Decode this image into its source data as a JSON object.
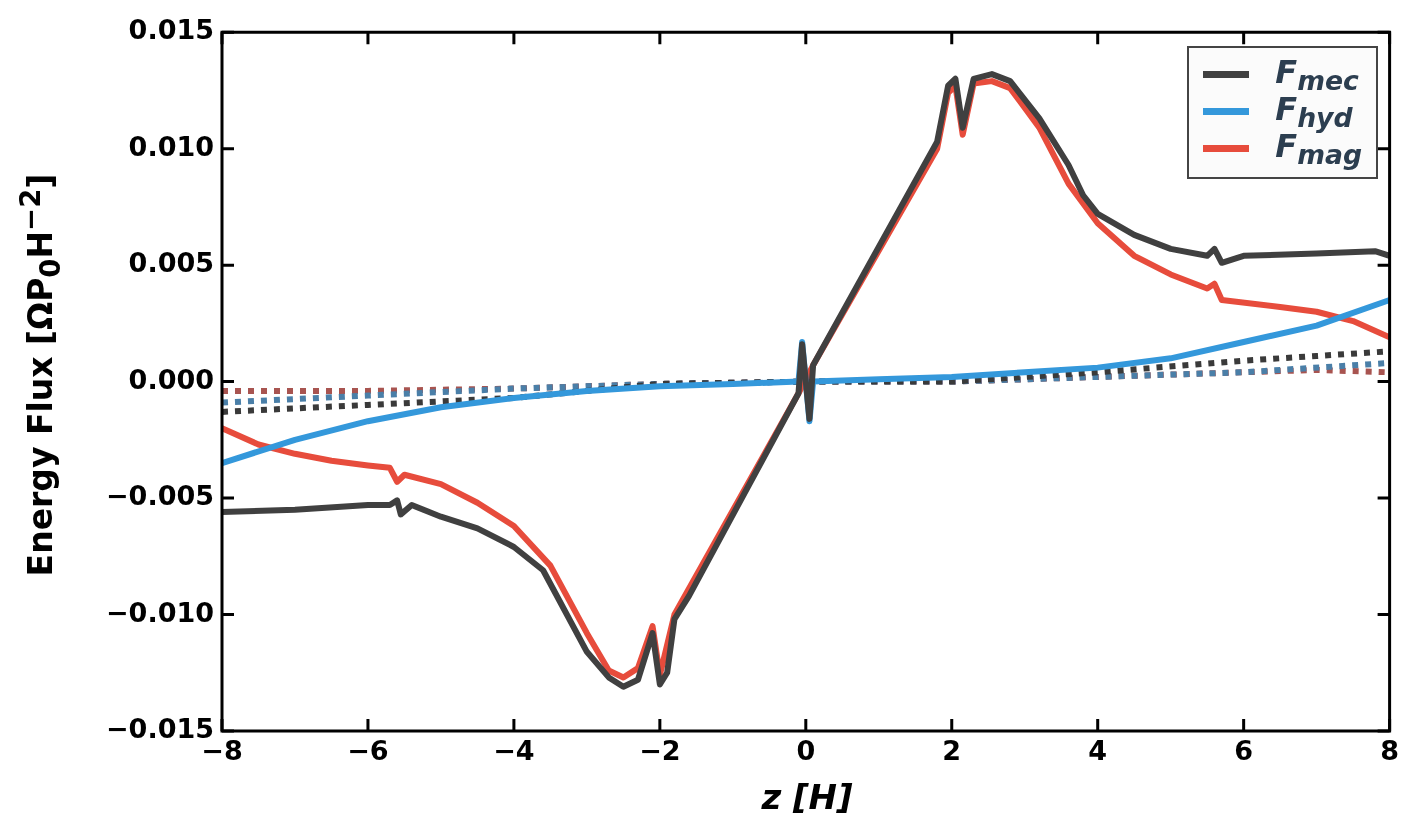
{
  "chart_data": {
    "type": "line",
    "xlabel": "z [H]",
    "ylabel": "Energy Flux [ΩP$_{0}$H$^{−2}$]",
    "xlim": [
      -8,
      8
    ],
    "ylim": [
      -0.015,
      0.015
    ],
    "xticks": [
      {
        "value": -8,
        "label": "−8"
      },
      {
        "value": -6,
        "label": "−6"
      },
      {
        "value": -4,
        "label": "−4"
      },
      {
        "value": -2,
        "label": "−2"
      },
      0,
      2,
      4,
      6,
      8
    ],
    "yticks": [
      {
        "value": -0.015,
        "label": "−0.015"
      },
      {
        "value": -0.01,
        "label": "−0.010"
      },
      {
        "value": -0.005,
        "label": "−0.005"
      },
      {
        "value": 0,
        "label": "0.000"
      },
      {
        "value": 0.005,
        "label": "0.005"
      },
      {
        "value": 0.01,
        "label": "0.010"
      },
      {
        "value": 0.015,
        "label": "0.015"
      }
    ],
    "grid": false,
    "legend": "top right",
    "marker": "none",
    "line_style": "solid",
    "series": [
      {
        "name": "F$_{mec}$",
        "color": "#404040",
        "x": [
          -8,
          -7,
          -6,
          -5.7,
          -5.6,
          -5.55,
          -5.4,
          -5,
          -4.5,
          -4,
          -3.6,
          -3,
          -2.7,
          -2.5,
          -2.3,
          -2.1,
          -2,
          -1.9,
          -1.8,
          -1.6,
          -0.1,
          -0.05,
          0.05,
          0.1,
          1.8,
          1.95,
          2.05,
          2.15,
          2.3,
          2.55,
          2.8,
          3.2,
          3.6,
          3.8,
          4,
          4.5,
          5,
          5.5,
          5.6,
          5.7,
          6,
          7,
          7.8,
          8
        ],
        "values": [
          -0.0056,
          -0.0055,
          -0.0053,
          -0.0053,
          -0.0051,
          -0.0057,
          -0.0053,
          -0.0058,
          -0.0063,
          -0.0071,
          -0.0081,
          -0.0116,
          -0.0127,
          -0.0131,
          -0.0128,
          -0.0108,
          -0.013,
          -0.0125,
          -0.0102,
          -0.0092,
          -0.0005,
          0.0016,
          -0.0016,
          0.0007,
          0.0103,
          0.0127,
          0.013,
          0.0109,
          0.013,
          0.0132,
          0.0129,
          0.0113,
          0.0093,
          0.008,
          0.0072,
          0.0063,
          0.0057,
          0.0054,
          0.0057,
          0.0051,
          0.0054,
          0.0055,
          0.0056,
          0.0054
        ]
      },
      {
        "name": "F$_{hyd}$",
        "color": "#3498db",
        "x": [
          -8,
          -7,
          -6,
          -5,
          -4,
          -3,
          -2,
          -1,
          -0.1,
          -0.05,
          0.05,
          0.1,
          1,
          2,
          3,
          4,
          5,
          6,
          7,
          8
        ],
        "values": [
          -0.0035,
          -0.0025,
          -0.0017,
          -0.0011,
          -0.0007,
          -0.0004,
          -0.0002,
          -0.0001,
          0,
          0.0017,
          -0.0017,
          0,
          0.0001,
          0.0002,
          0.0004,
          0.0006,
          0.001,
          0.0017,
          0.0024,
          0.0035
        ]
      },
      {
        "name": "F$_{mag}$",
        "color": "#e74c3c",
        "x": [
          -8,
          -7.5,
          -7,
          -6.5,
          -6,
          -5.7,
          -5.6,
          -5.5,
          -5,
          -4.5,
          -4,
          -3.5,
          -3,
          -2.7,
          -2.5,
          -2.3,
          -2.1,
          -2,
          -1.8,
          -0.1,
          -0.05,
          0.05,
          0.1,
          1.8,
          1.95,
          2.05,
          2.15,
          2.3,
          2.55,
          2.8,
          3.2,
          3.6,
          4,
          4.5,
          5,
          5.5,
          5.6,
          5.7,
          6.5,
          7,
          7.5,
          8
        ],
        "values": [
          -0.002,
          -0.0027,
          -0.0031,
          -0.0034,
          -0.0036,
          -0.0037,
          -0.0043,
          -0.004,
          -0.0044,
          -0.0052,
          -0.0062,
          -0.0079,
          -0.0108,
          -0.0124,
          -0.0127,
          -0.0123,
          -0.0105,
          -0.0126,
          -0.01,
          -0.0005,
          null,
          null,
          0.0007,
          0.01,
          0.0124,
          0.0127,
          0.0106,
          0.0128,
          0.0129,
          0.0126,
          0.0109,
          0.0085,
          0.0068,
          0.0054,
          0.0046,
          0.004,
          0.0042,
          0.0035,
          0.0032,
          0.003,
          0.0026,
          0.0019
        ]
      },
      {
        "color": "#3a3a3a",
        "line_style": "dotted",
        "x": [
          -8,
          -6,
          -4,
          -2,
          0,
          2,
          4,
          6,
          7,
          8
        ],
        "values": [
          -0.0013,
          -0.001,
          -0.0007,
          -0.0001,
          0,
          0,
          0.0004,
          0.0009,
          0.0011,
          0.0013
        ]
      },
      {
        "color": "#4a7fa8",
        "line_style": "dotted",
        "x": [
          -8,
          -6,
          -4,
          -2,
          0,
          2,
          4,
          6,
          8
        ],
        "values": [
          -0.0009,
          -0.0006,
          -0.0003,
          -0.0001,
          0,
          0,
          0.0002,
          0.0004,
          0.0008
        ]
      },
      {
        "color": "#a85450",
        "line_style": "dotted",
        "x": [
          -8,
          -6,
          -4,
          -2,
          0,
          2,
          4,
          6,
          7,
          8
        ],
        "values": [
          -0.0004,
          -0.0004,
          -0.0003,
          -0.0001,
          0,
          0,
          0.0002,
          0.0004,
          0.0005,
          0.0004
        ]
      }
    ]
  }
}
